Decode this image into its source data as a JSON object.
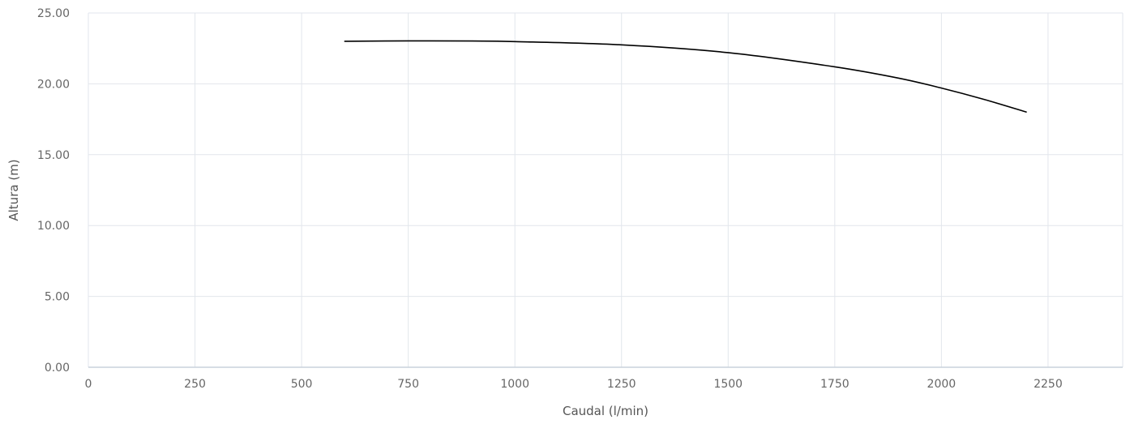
{
  "chart_data": {
    "type": "line",
    "title": "",
    "xlabel": "Caudal (l/min)",
    "ylabel": "Altura (m)",
    "xlim": [
      0,
      2425
    ],
    "ylim": [
      0,
      25
    ],
    "x_ticks": [
      0,
      250,
      500,
      750,
      1000,
      1250,
      1500,
      1750,
      2000,
      2250
    ],
    "x_tick_labels": [
      "0",
      "250",
      "500",
      "750",
      "1000",
      "1250",
      "1500",
      "1750",
      "2000",
      "2250"
    ],
    "y_ticks": [
      0,
      5,
      10,
      15,
      20,
      25
    ],
    "y_tick_labels": [
      "0.00",
      "5.00",
      "10.00",
      "15.00",
      "20.00",
      "25.00"
    ],
    "grid": true,
    "series": [
      {
        "color": "#000000",
        "x": [
          600,
          750,
          900,
          1000,
          1250,
          1500,
          1750,
          1900,
          2000,
          2100,
          2200
        ],
        "y": [
          23.0,
          23.03,
          23.02,
          22.98,
          22.75,
          22.2,
          21.2,
          20.4,
          19.7,
          18.9,
          18.0
        ]
      }
    ]
  }
}
